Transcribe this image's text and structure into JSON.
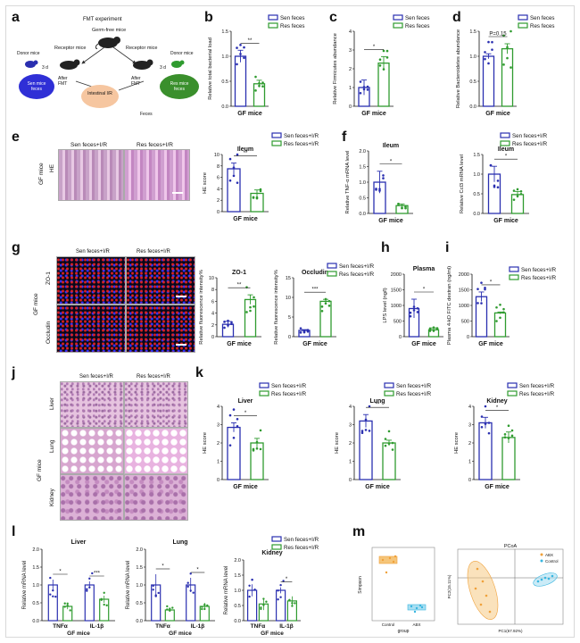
{
  "letters": [
    "a",
    "b",
    "c",
    "d",
    "e",
    "f",
    "g",
    "h",
    "i",
    "j",
    "k",
    "l",
    "m"
  ],
  "colors": {
    "sen": "#2a2fb0",
    "res": "#2f9b2f",
    "pcoa_sen": "#f0a13a",
    "pcoa_res": "#38b6e0"
  },
  "legend": {
    "sen": "Sen feces",
    "res": "Res feces",
    "sen_ir": "Sen feces+I/R",
    "res_ir": "Res feces+I/R"
  },
  "xlabel_gf": "GF mice",
  "panel_a": {
    "title": "FMT experiment",
    "germ_free": "Germ-free mice",
    "receptor_left": "Receptor mice",
    "receptor_right": "Receptor mice",
    "donor_left": "Donor mice",
    "donor_right": "Donor mice",
    "days_left": "3 d",
    "days_right": "3 d",
    "after_left": "After FMT",
    "after_right": "After FMT",
    "sen_circle": "Sen mice feces",
    "res_circle": "Res mice feces",
    "ir_circle": "Intestinal I/R",
    "feces": "Feces"
  },
  "panel_b": {
    "ylabel": "Relative total bacterial load",
    "sig": "**",
    "yticks": [
      "0.0",
      "0.5",
      "1.0",
      "1.5"
    ]
  },
  "panel_c": {
    "ylabel": "Relative Firmicutes abundance",
    "sig": "*",
    "yticks": [
      "0",
      "1",
      "2",
      "3",
      "4"
    ]
  },
  "panel_d": {
    "ylabel": "Relative Bacteroidetes abundance",
    "sig": "P=0.15",
    "yticks": [
      "0.0",
      "0.5",
      "1.0",
      "1.5"
    ]
  },
  "panel_e": {
    "col1": "Sen feces+I/R",
    "col2": "Res feces+I/R",
    "row": "HE",
    "side": "GF mice",
    "title": "Ileum",
    "ylabel": "HE score",
    "sig": "**",
    "yticks": [
      "0",
      "2",
      "4",
      "6",
      "8",
      "10"
    ]
  },
  "panel_f1": {
    "title": "Ileum",
    "ylabel": "Relative TNF-α mRNA level",
    "sig": "*",
    "yticks": [
      "0.0",
      "0.5",
      "1.0",
      "1.5",
      "2.0"
    ]
  },
  "panel_f2": {
    "title": "Ileum",
    "ylabel": "Relative Ccl3 mRNA level",
    "sig": "*",
    "yticks": [
      "0.0",
      "0.5",
      "1.0",
      "1.5"
    ]
  },
  "panel_g": {
    "col1": "Sen feces+I/R",
    "col2": "Res feces+I/R",
    "row1": "ZO-1",
    "row2": "Occludin",
    "side": "GF mice",
    "zo1_title": "ZO-1",
    "occ_title": "Occludin",
    "ylabel": "Relative fluorescence intensity%",
    "zo1_sig": "**",
    "occ_sig": "***",
    "zo1_yticks": [
      "0",
      "2",
      "4",
      "6",
      "8",
      "10"
    ],
    "occ_yticks": [
      "0",
      "5",
      "10",
      "15"
    ]
  },
  "panel_h": {
    "title": "Plasma",
    "ylabel": "LPS level (ng/l)",
    "sig": "*",
    "yticks": [
      "0",
      "500",
      "1000",
      "1500",
      "2000"
    ]
  },
  "panel_i": {
    "ylabel": "Plasma 4-kD FITC dextran (ng/ml)",
    "sig": "*",
    "yticks": [
      "0",
      "500",
      "1000",
      "1500",
      "2000"
    ]
  },
  "panel_j": {
    "col1": "Sen feces+I/R",
    "col2": "Res feces+I/R",
    "row1": "Liver",
    "row2": "Lung",
    "row3": "Kidney",
    "side": "GF mice"
  },
  "panel_k": {
    "liver": "Liver",
    "lung": "Lung",
    "kidney": "Kidney",
    "ylabel": "HE score",
    "liver_sig": "*",
    "lung_sig": "**",
    "kidney_sig": "*",
    "yticks": [
      "0",
      "1",
      "2",
      "3",
      "4"
    ]
  },
  "panel_l": {
    "liver": "Liver",
    "lung": "Lung",
    "kidney": "Kidney",
    "ylabel": "Relative mRNA level",
    "cat1": "TNFα",
    "cat2": "IL-1β",
    "sig_liver": [
      "*",
      "***"
    ],
    "sig_lung": [
      "*",
      "*"
    ],
    "sig_kidney": [
      "*"
    ],
    "yticks": [
      "0.0",
      "0.5",
      "1.0",
      "1.5",
      "2.0"
    ]
  },
  "panel_m": {
    "left_ylabel": "Simpson",
    "left_xlabel": "group",
    "left_xticks": [
      "Control",
      "ABX"
    ],
    "right_title": "PCoA",
    "right_xlabel": "PC1(67.92%)",
    "right_ylabel": "PC2(15.11%)",
    "legend_abx": "ABX",
    "legend_control": "Control"
  },
  "chart_data": [
    {
      "type": "bar",
      "panel": "b",
      "categories": [
        "Sen feces",
        "Res feces"
      ],
      "values": [
        1.0,
        0.45
      ],
      "errors": [
        0.12,
        0.07
      ],
      "ylim": [
        0,
        1.5
      ]
    },
    {
      "type": "bar",
      "panel": "c",
      "categories": [
        "Sen feces",
        "Res feces"
      ],
      "values": [
        1.0,
        2.3
      ],
      "errors": [
        0.4,
        0.35
      ],
      "ylim": [
        0,
        4
      ]
    },
    {
      "type": "bar",
      "panel": "d",
      "categories": [
        "Sen feces",
        "Res feces"
      ],
      "values": [
        1.0,
        1.15
      ],
      "errors": [
        0.05,
        0.1
      ],
      "ylim": [
        0,
        1.5
      ]
    },
    {
      "type": "bar",
      "panel": "e",
      "categories": [
        "Sen feces+I/R",
        "Res feces+I/R"
      ],
      "values": [
        7.5,
        3.2
      ],
      "errors": [
        1.0,
        0.6
      ],
      "ylim": [
        0,
        10
      ]
    },
    {
      "type": "bar",
      "panel": "f1",
      "categories": [
        "Sen feces+I/R",
        "Res feces+I/R"
      ],
      "values": [
        1.0,
        0.25
      ],
      "errors": [
        0.35,
        0.05
      ],
      "ylim": [
        0,
        2.0
      ]
    },
    {
      "type": "bar",
      "panel": "f2",
      "categories": [
        "Sen feces+I/R",
        "Res feces+I/R"
      ],
      "values": [
        1.0,
        0.48
      ],
      "errors": [
        0.2,
        0.08
      ],
      "ylim": [
        0,
        1.5
      ]
    },
    {
      "type": "bar",
      "panel": "g_zo1",
      "categories": [
        "Sen feces+I/R",
        "Res feces+I/R"
      ],
      "values": [
        2.1,
        6.3
      ],
      "errors": [
        0.5,
        0.8
      ],
      "ylim": [
        0,
        10
      ]
    },
    {
      "type": "bar",
      "panel": "g_occludin",
      "categories": [
        "Sen feces+I/R",
        "Res feces+I/R"
      ],
      "values": [
        1.6,
        9.0
      ],
      "errors": [
        0.2,
        0.5
      ],
      "ylim": [
        0,
        15
      ]
    },
    {
      "type": "bar",
      "panel": "h",
      "categories": [
        "Sen feces+I/R",
        "Res feces+I/R"
      ],
      "values": [
        900,
        220
      ],
      "errors": [
        300,
        60
      ],
      "ylim": [
        0,
        2000
      ]
    },
    {
      "type": "bar",
      "panel": "i",
      "categories": [
        "Sen feces+I/R",
        "Res feces+I/R"
      ],
      "values": [
        1280,
        760
      ],
      "errors": [
        150,
        30
      ],
      "ylim": [
        0,
        2000
      ]
    },
    {
      "type": "bar",
      "panel": "k_liver",
      "categories": [
        "Sen feces+I/R",
        "Res feces+I/R"
      ],
      "values": [
        2.85,
        2.0
      ],
      "errors": [
        0.25,
        0.25
      ],
      "ylim": [
        0,
        4
      ]
    },
    {
      "type": "bar",
      "panel": "k_lung",
      "categories": [
        "Sen feces+I/R",
        "Res feces+I/R"
      ],
      "values": [
        3.2,
        2.0
      ],
      "errors": [
        0.35,
        0.15
      ],
      "ylim": [
        0,
        4
      ]
    },
    {
      "type": "bar",
      "panel": "k_kidney",
      "categories": [
        "Sen feces+I/R",
        "Res feces+I/R"
      ],
      "values": [
        3.1,
        2.3
      ],
      "errors": [
        0.3,
        0.3
      ],
      "ylim": [
        0,
        4
      ]
    },
    {
      "type": "bar",
      "panel": "l_liver",
      "categories": [
        "TNFα",
        "IL-1β"
      ],
      "series": [
        {
          "name": "Sen feces+I/R",
          "values": [
            1.0,
            1.0
          ],
          "errors": [
            0.15,
            0.1
          ]
        },
        {
          "name": "Res feces+I/R",
          "values": [
            0.4,
            0.6
          ],
          "errors": [
            0.08,
            0.1
          ]
        }
      ],
      "ylim": [
        0,
        2.0
      ]
    },
    {
      "type": "bar",
      "panel": "l_lung",
      "categories": [
        "TNFα",
        "IL-1β"
      ],
      "series": [
        {
          "name": "Sen feces+I/R",
          "values": [
            1.0,
            1.0
          ],
          "errors": [
            0.3,
            0.2
          ]
        },
        {
          "name": "Res feces+I/R",
          "values": [
            0.3,
            0.4
          ],
          "errors": [
            0.05,
            0.1
          ]
        }
      ],
      "ylim": [
        0,
        2.0
      ]
    },
    {
      "type": "bar",
      "panel": "l_kidney",
      "categories": [
        "TNFα",
        "IL-1β"
      ],
      "series": [
        {
          "name": "Sen feces+I/R",
          "values": [
            1.0,
            1.0
          ],
          "errors": [
            0.2,
            0.1
          ]
        },
        {
          "name": "Res feces+I/R",
          "values": [
            0.55,
            0.65
          ],
          "errors": [
            0.2,
            0.15
          ]
        }
      ],
      "ylim": [
        0,
        2.0
      ]
    }
  ]
}
